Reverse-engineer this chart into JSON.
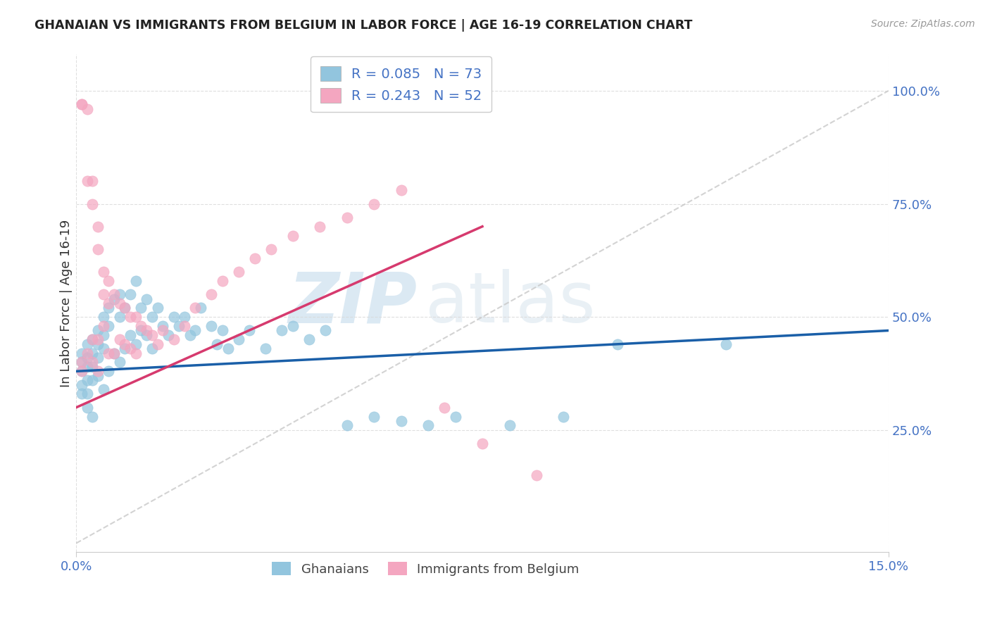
{
  "title": "GHANAIAN VS IMMIGRANTS FROM BELGIUM IN LABOR FORCE | AGE 16-19 CORRELATION CHART",
  "source": "Source: ZipAtlas.com",
  "ylabel": "In Labor Force | Age 16-19",
  "xlim": [
    0.0,
    0.15
  ],
  "ylim": [
    -0.02,
    1.08
  ],
  "ytick_positions": [
    0.25,
    0.5,
    0.75,
    1.0
  ],
  "ytick_labels": [
    "25.0%",
    "50.0%",
    "75.0%",
    "100.0%"
  ],
  "xtick_positions": [
    0.0,
    0.15
  ],
  "xtick_labels": [
    "0.0%",
    "15.0%"
  ],
  "legend_entry1": "R = 0.085   N = 73",
  "legend_entry2": "R = 0.243   N = 52",
  "legend_label1": "Ghanaians",
  "legend_label2": "Immigrants from Belgium",
  "color_blue": "#92c5de",
  "color_pink": "#f4a6c0",
  "trendline_blue": "#1a5fa8",
  "trendline_pink": "#d63a6e",
  "trendline_gray": "#c8c8c8",
  "watermark_zip": "ZIP",
  "watermark_atlas": "atlas",
  "background_color": "#ffffff",
  "ghanaian_x": [
    0.001,
    0.001,
    0.001,
    0.001,
    0.001,
    0.002,
    0.002,
    0.002,
    0.002,
    0.002,
    0.002,
    0.003,
    0.003,
    0.003,
    0.003,
    0.003,
    0.004,
    0.004,
    0.004,
    0.004,
    0.005,
    0.005,
    0.005,
    0.005,
    0.006,
    0.006,
    0.006,
    0.007,
    0.007,
    0.008,
    0.008,
    0.008,
    0.009,
    0.009,
    0.01,
    0.01,
    0.011,
    0.011,
    0.012,
    0.012,
    0.013,
    0.013,
    0.014,
    0.014,
    0.015,
    0.016,
    0.017,
    0.018,
    0.019,
    0.02,
    0.021,
    0.022,
    0.023,
    0.025,
    0.026,
    0.027,
    0.028,
    0.03,
    0.032,
    0.035,
    0.038,
    0.04,
    0.043,
    0.046,
    0.05,
    0.055,
    0.06,
    0.065,
    0.07,
    0.08,
    0.09,
    0.1,
    0.12
  ],
  "ghanaian_y": [
    0.42,
    0.4,
    0.38,
    0.35,
    0.33,
    0.44,
    0.41,
    0.39,
    0.36,
    0.33,
    0.3,
    0.45,
    0.42,
    0.39,
    0.36,
    0.28,
    0.47,
    0.44,
    0.41,
    0.37,
    0.5,
    0.46,
    0.43,
    0.34,
    0.52,
    0.48,
    0.38,
    0.54,
    0.42,
    0.55,
    0.5,
    0.4,
    0.52,
    0.43,
    0.55,
    0.46,
    0.58,
    0.44,
    0.52,
    0.47,
    0.54,
    0.46,
    0.5,
    0.43,
    0.52,
    0.48,
    0.46,
    0.5,
    0.48,
    0.5,
    0.46,
    0.47,
    0.52,
    0.48,
    0.44,
    0.47,
    0.43,
    0.45,
    0.47,
    0.43,
    0.47,
    0.48,
    0.45,
    0.47,
    0.26,
    0.28,
    0.27,
    0.26,
    0.28,
    0.26,
    0.28,
    0.44,
    0.44
  ],
  "belgium_x": [
    0.001,
    0.001,
    0.001,
    0.001,
    0.002,
    0.002,
    0.002,
    0.003,
    0.003,
    0.003,
    0.003,
    0.004,
    0.004,
    0.004,
    0.004,
    0.005,
    0.005,
    0.005,
    0.006,
    0.006,
    0.006,
    0.007,
    0.007,
    0.008,
    0.008,
    0.009,
    0.009,
    0.01,
    0.01,
    0.011,
    0.011,
    0.012,
    0.013,
    0.014,
    0.015,
    0.016,
    0.018,
    0.02,
    0.022,
    0.025,
    0.027,
    0.03,
    0.033,
    0.036,
    0.04,
    0.045,
    0.05,
    0.055,
    0.06,
    0.068,
    0.075,
    0.085
  ],
  "belgium_y": [
    0.97,
    0.97,
    0.4,
    0.38,
    0.96,
    0.8,
    0.42,
    0.8,
    0.75,
    0.45,
    0.4,
    0.7,
    0.65,
    0.45,
    0.38,
    0.6,
    0.55,
    0.48,
    0.58,
    0.53,
    0.42,
    0.55,
    0.42,
    0.53,
    0.45,
    0.52,
    0.44,
    0.5,
    0.43,
    0.5,
    0.42,
    0.48,
    0.47,
    0.46,
    0.44,
    0.47,
    0.45,
    0.48,
    0.52,
    0.55,
    0.58,
    0.6,
    0.63,
    0.65,
    0.68,
    0.7,
    0.72,
    0.75,
    0.78,
    0.3,
    0.22,
    0.15
  ],
  "blue_trend_x0": 0.0,
  "blue_trend_y0": 0.38,
  "blue_trend_x1": 0.15,
  "blue_trend_y1": 0.47,
  "pink_trend_x0": 0.0,
  "pink_trend_y0": 0.3,
  "pink_trend_x1": 0.075,
  "pink_trend_y1": 0.7,
  "ref_line_x0": 0.0,
  "ref_line_y0": 0.0,
  "ref_line_x1": 0.15,
  "ref_line_y1": 1.0
}
